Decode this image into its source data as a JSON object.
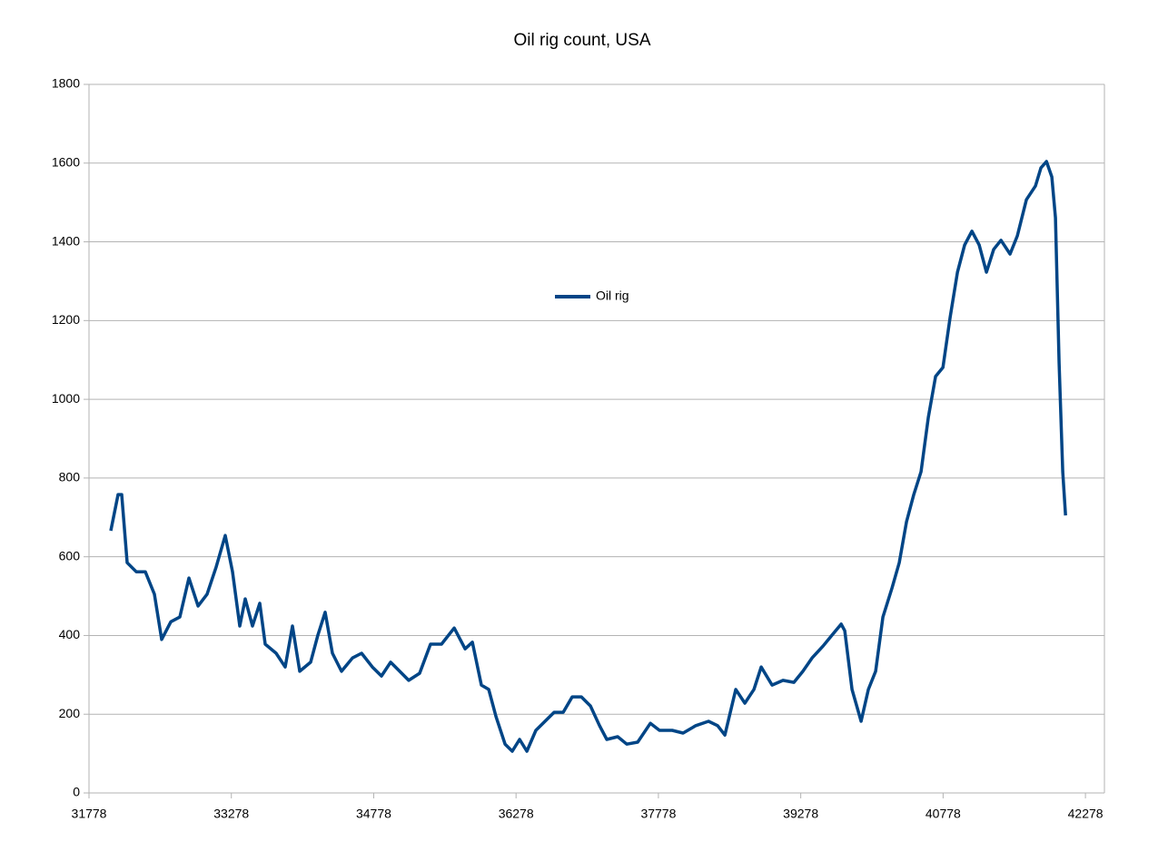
{
  "chart_data": {
    "type": "line",
    "title": "Oil rig count, USA",
    "x": [
      32008,
      32084,
      32123,
      32180,
      32276,
      32371,
      32467,
      32544,
      32640,
      32735,
      32831,
      32927,
      33022,
      33118,
      33214,
      33290,
      33367,
      33424,
      33501,
      33577,
      33635,
      33750,
      33845,
      33922,
      33998,
      34113,
      34190,
      34266,
      34343,
      34439,
      34554,
      34650,
      34764,
      34860,
      34956,
      35052,
      35147,
      35262,
      35377,
      35492,
      35626,
      35741,
      35818,
      35913,
      35990,
      36067,
      36162,
      36238,
      36315,
      36392,
      36487,
      36583,
      36679,
      36775,
      36870,
      36966,
      37062,
      37158,
      37234,
      37349,
      37445,
      37560,
      37694,
      37789,
      37923,
      38038,
      38172,
      38306,
      38402,
      38478,
      38593,
      38689,
      38785,
      38861,
      38976,
      39091,
      39206,
      39301,
      39397,
      39512,
      39608,
      39704,
      39742,
      39818,
      39914,
      39991,
      40067,
      40144,
      40240,
      40316,
      40393,
      40469,
      40546,
      40622,
      40699,
      40776,
      40852,
      40929,
      41005,
      41082,
      41158,
      41235,
      41311,
      41388,
      41484,
      41560,
      41656,
      41752,
      41809,
      41867,
      41924,
      41962,
      42000,
      42039,
      42068
    ],
    "series": [
      {
        "name": "Oil rig",
        "color": "#004586",
        "values": [
          666,
          758,
          758,
          585,
          562,
          562,
          505,
          390,
          435,
          447,
          546,
          475,
          505,
          574,
          654,
          562,
          424,
          493,
          424,
          482,
          378,
          355,
          320,
          424,
          309,
          332,
          401,
          459,
          355,
          309,
          343,
          355,
          320,
          297,
          332,
          309,
          286,
          304,
          378,
          378,
          419,
          366,
          383,
          274,
          263,
          194,
          124,
          106,
          136,
          106,
          159,
          182,
          205,
          205,
          244,
          244,
          221,
          171,
          136,
          143,
          124,
          129,
          177,
          159,
          159,
          152,
          171,
          182,
          171,
          147,
          263,
          228,
          263,
          320,
          274,
          286,
          281,
          309,
          343,
          373,
          401,
          429,
          412,
          263,
          182,
          263,
          309,
          447,
          521,
          585,
          689,
          758,
          816,
          954,
          1058,
          1081,
          1208,
          1323,
          1392,
          1427,
          1392,
          1323,
          1381,
          1404,
          1369,
          1415,
          1507,
          1542,
          1588,
          1604,
          1565,
          1461,
          1092,
          816,
          705
        ]
      }
    ],
    "xlim": [
      31778,
      42478
    ],
    "xticks": [
      31778,
      33278,
      34778,
      36278,
      37778,
      39278,
      40778,
      42278
    ],
    "ylim": [
      0,
      1800
    ],
    "yticks": [
      0,
      200,
      400,
      600,
      800,
      1000,
      1200,
      1400,
      1600,
      1800
    ],
    "grid": true,
    "legend": "center"
  }
}
